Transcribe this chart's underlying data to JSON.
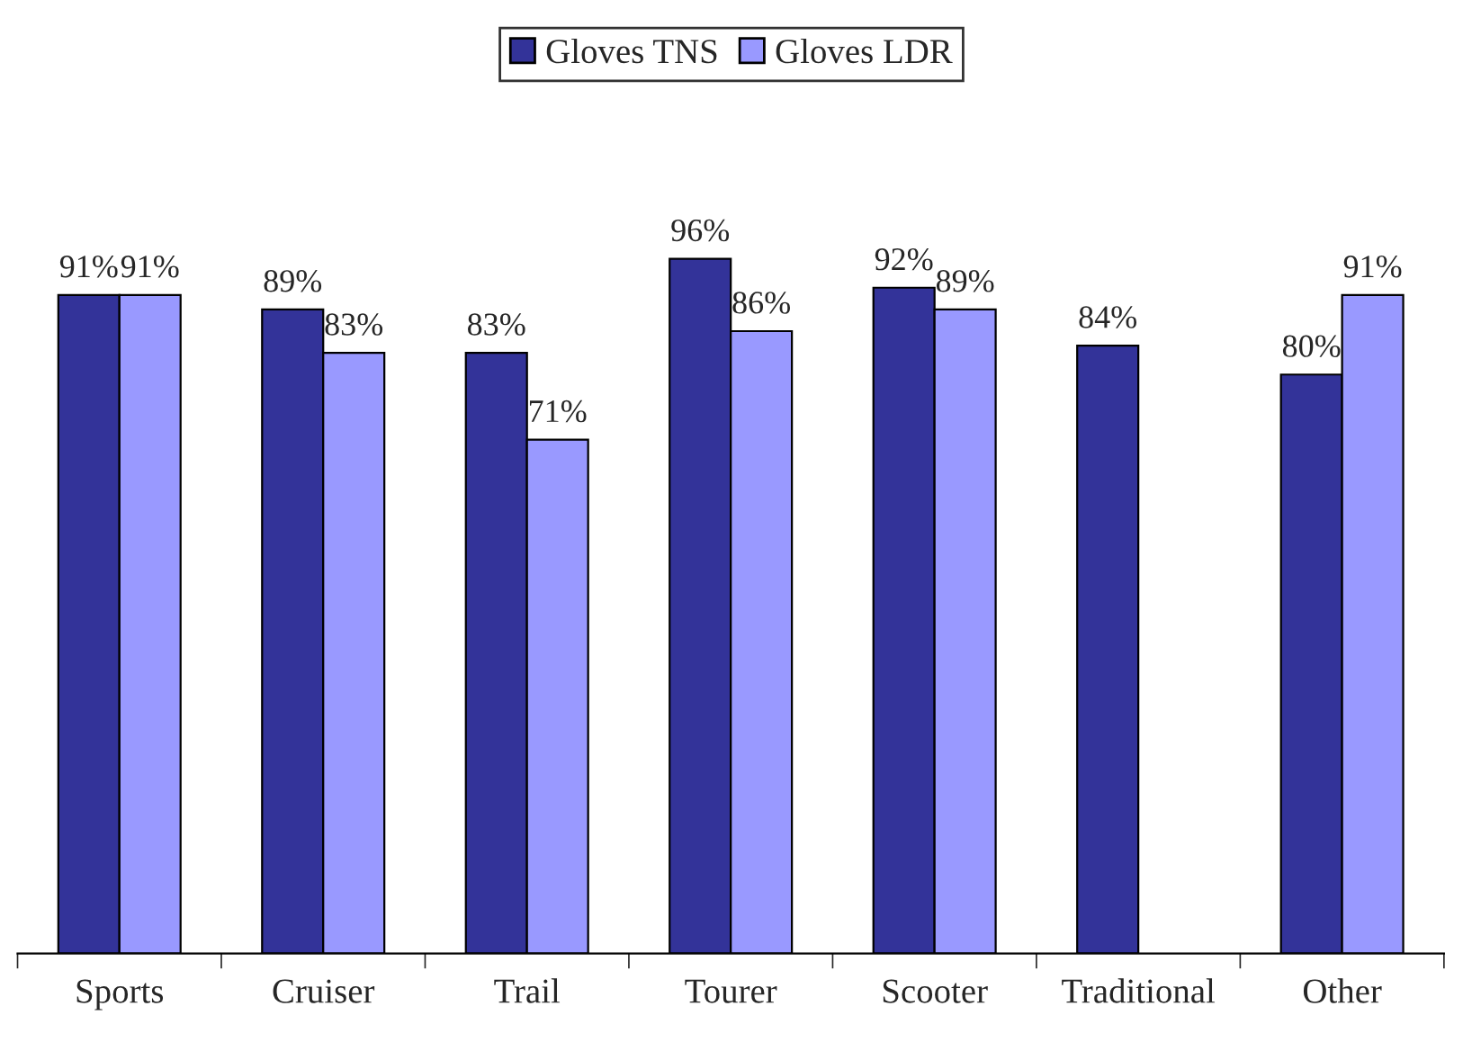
{
  "chart_data": {
    "type": "bar",
    "categories": [
      "Sports",
      "Cruiser",
      "Trail",
      "Tourer",
      "Scooter",
      "Traditional",
      "Other"
    ],
    "series": [
      {
        "name": "Gloves TNS",
        "color": "#333399",
        "values": [
          91,
          89,
          83,
          96,
          92,
          84,
          80
        ],
        "value_labels": [
          "91%",
          "89%",
          "83%",
          "96%",
          "92%",
          "84%",
          "80%"
        ]
      },
      {
        "name": "Gloves LDR",
        "color": "#9999ff",
        "values": [
          91,
          83,
          71,
          86,
          89,
          null,
          91
        ],
        "value_labels": [
          "91%",
          "83%",
          "71%",
          "86%",
          "89%",
          null,
          "91%"
        ]
      }
    ],
    "legend": "top",
    "grid": false
  }
}
